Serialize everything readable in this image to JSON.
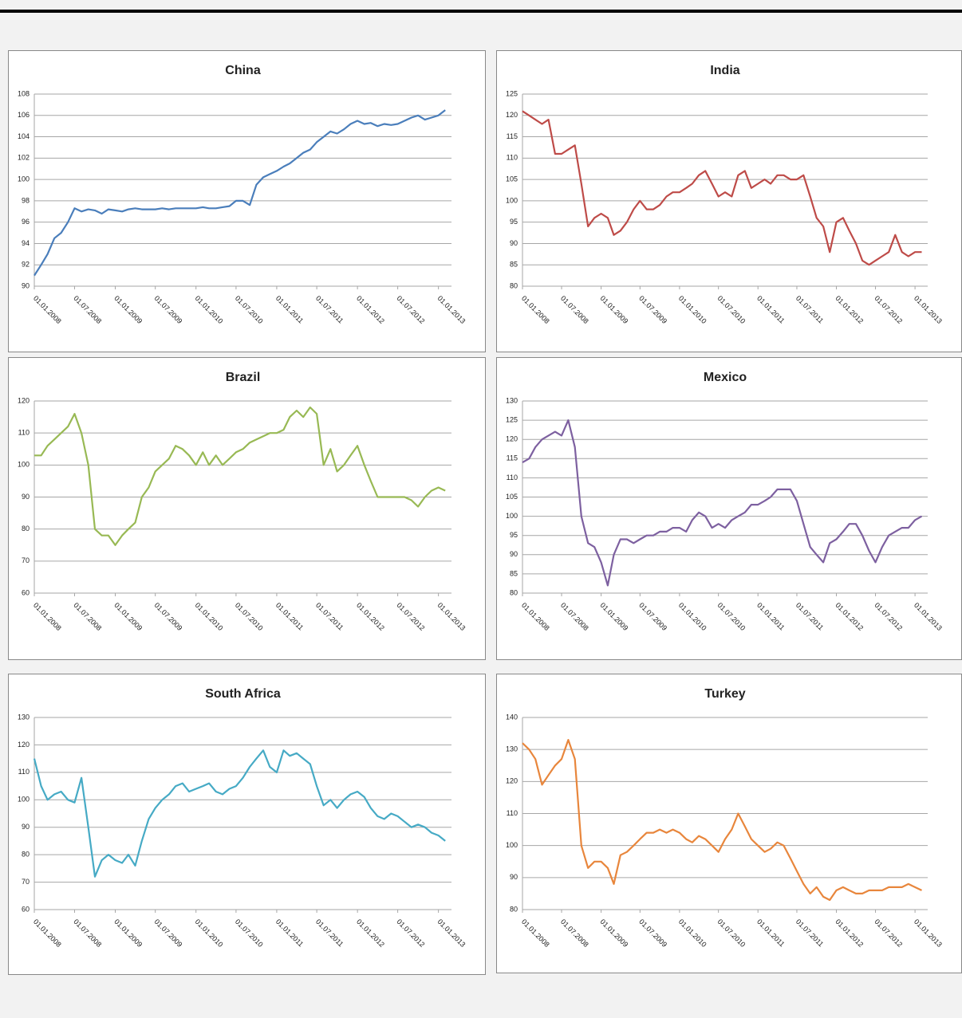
{
  "chart_data": [
    {
      "type": "line",
      "title": "China",
      "color": "#4a7ebb",
      "grid": true,
      "x": [
        "01.01.2008",
        "01.02.2008",
        "01.03.2008",
        "01.04.2008",
        "01.05.2008",
        "01.06.2008",
        "01.07.2008",
        "01.08.2008",
        "01.09.2008",
        "01.10.2008",
        "01.11.2008",
        "01.12.2008",
        "01.01.2009",
        "01.02.2009",
        "01.03.2009",
        "01.04.2009",
        "01.05.2009",
        "01.06.2009",
        "01.07.2009",
        "01.08.2009",
        "01.09.2009",
        "01.10.2009",
        "01.11.2009",
        "01.12.2009",
        "01.01.2010",
        "01.02.2010",
        "01.03.2010",
        "01.04.2010",
        "01.05.2010",
        "01.06.2010",
        "01.07.2010",
        "01.08.2010",
        "01.09.2010",
        "01.10.2010",
        "01.11.2010",
        "01.12.2010",
        "01.01.2011",
        "01.02.2011",
        "01.03.2011",
        "01.04.2011",
        "01.05.2011",
        "01.06.2011",
        "01.07.2011",
        "01.08.2011",
        "01.09.2011",
        "01.10.2011",
        "01.11.2011",
        "01.12.2011",
        "01.01.2012",
        "01.02.2012",
        "01.03.2012",
        "01.04.2012",
        "01.05.2012",
        "01.06.2012",
        "01.07.2012",
        "01.08.2012",
        "01.09.2012",
        "01.10.2012",
        "01.11.2012",
        "01.12.2012",
        "01.01.2013",
        "01.02.2013"
      ],
      "values": [
        91,
        92,
        93,
        94.5,
        95,
        96,
        97.3,
        97,
        97.2,
        97.1,
        96.8,
        97.2,
        97.1,
        97.0,
        97.2,
        97.3,
        97.2,
        97.2,
        97.2,
        97.3,
        97.2,
        97.3,
        97.3,
        97.3,
        97.3,
        97.4,
        97.3,
        97.3,
        97.4,
        97.5,
        98.0,
        98.0,
        97.6,
        99.5,
        100.2,
        100.5,
        100.8,
        101.2,
        101.5,
        102.0,
        102.5,
        102.8,
        103.5,
        104.0,
        104.5,
        104.3,
        104.7,
        105.2,
        105.5,
        105.2,
        105.3,
        105.0,
        105.2,
        105.1,
        105.2,
        105.5,
        105.8,
        106.0,
        105.6,
        105.8,
        106.0,
        106.5
      ],
      "xlim": [
        "01.01.2008",
        "01.03.2013"
      ],
      "xticks": [
        "01.01.2008",
        "01.07.2008",
        "01.01.2009",
        "01.07.2009",
        "01.01.2010",
        "01.07.2010",
        "01.01.2011",
        "01.07.2011",
        "01.01.2012",
        "01.07.2012",
        "01.01.2013"
      ],
      "ylim": [
        90,
        108
      ],
      "yticks": [
        90,
        92,
        94,
        96,
        98,
        100,
        102,
        104,
        106,
        108
      ]
    },
    {
      "type": "line",
      "title": "India",
      "color": "#be4b48",
      "grid": true,
      "x": [
        "01.01.2008",
        "01.02.2008",
        "01.03.2008",
        "01.04.2008",
        "01.05.2008",
        "01.06.2008",
        "01.07.2008",
        "01.08.2008",
        "01.09.2008",
        "01.10.2008",
        "01.11.2008",
        "01.12.2008",
        "01.01.2009",
        "01.02.2009",
        "01.03.2009",
        "01.04.2009",
        "01.05.2009",
        "01.06.2009",
        "01.07.2009",
        "01.08.2009",
        "01.09.2009",
        "01.10.2009",
        "01.11.2009",
        "01.12.2009",
        "01.01.2010",
        "01.02.2010",
        "01.03.2010",
        "01.04.2010",
        "01.05.2010",
        "01.06.2010",
        "01.07.2010",
        "01.08.2010",
        "01.09.2010",
        "01.10.2010",
        "01.11.2010",
        "01.12.2010",
        "01.01.2011",
        "01.02.2011",
        "01.03.2011",
        "01.04.2011",
        "01.05.2011",
        "01.06.2011",
        "01.07.2011",
        "01.08.2011",
        "01.09.2011",
        "01.10.2011",
        "01.11.2011",
        "01.12.2011",
        "01.01.2012",
        "01.02.2012",
        "01.03.2012",
        "01.04.2012",
        "01.05.2012",
        "01.06.2012",
        "01.07.2012",
        "01.08.2012",
        "01.09.2012",
        "01.10.2012",
        "01.11.2012",
        "01.12.2012",
        "01.01.2013",
        "01.02.2013"
      ],
      "values": [
        121,
        120,
        119,
        118,
        119,
        111,
        111,
        112,
        113,
        104,
        94,
        96,
        97,
        96,
        92,
        93,
        95,
        98,
        100,
        98,
        98,
        99,
        101,
        102,
        102,
        103,
        104,
        106,
        107,
        104,
        101,
        102,
        101,
        106,
        107,
        103,
        104,
        105,
        104,
        106,
        106,
        105,
        105,
        106,
        101,
        96,
        94,
        88,
        95,
        96,
        93,
        90,
        86,
        85,
        86,
        87,
        88,
        92,
        88,
        87,
        88,
        88
      ],
      "xlim": [
        "01.01.2008",
        "01.03.2013"
      ],
      "xticks": [
        "01.01.2008",
        "01.07.2008",
        "01.01.2009",
        "01.07.2009",
        "01.01.2010",
        "01.07.2010",
        "01.01.2011",
        "01.07.2011",
        "01.01.2012",
        "01.07.2012",
        "01.01.2013"
      ],
      "ylim": [
        80,
        125
      ],
      "yticks": [
        80,
        85,
        90,
        95,
        100,
        105,
        110,
        115,
        120,
        125
      ]
    },
    {
      "type": "line",
      "title": "Brazil",
      "color": "#98b954",
      "grid": true,
      "x": [
        "01.01.2008",
        "01.02.2008",
        "01.03.2008",
        "01.04.2008",
        "01.05.2008",
        "01.06.2008",
        "01.07.2008",
        "01.08.2008",
        "01.09.2008",
        "01.10.2008",
        "01.11.2008",
        "01.12.2008",
        "01.01.2009",
        "01.02.2009",
        "01.03.2009",
        "01.04.2009",
        "01.05.2009",
        "01.06.2009",
        "01.07.2009",
        "01.08.2009",
        "01.09.2009",
        "01.10.2009",
        "01.11.2009",
        "01.12.2009",
        "01.01.2010",
        "01.02.2010",
        "01.03.2010",
        "01.04.2010",
        "01.05.2010",
        "01.06.2010",
        "01.07.2010",
        "01.08.2010",
        "01.09.2010",
        "01.10.2010",
        "01.11.2010",
        "01.12.2010",
        "01.01.2011",
        "01.02.2011",
        "01.03.2011",
        "01.04.2011",
        "01.05.2011",
        "01.06.2011",
        "01.07.2011",
        "01.08.2011",
        "01.09.2011",
        "01.10.2011",
        "01.11.2011",
        "01.12.2011",
        "01.01.2012",
        "01.02.2012",
        "01.03.2012",
        "01.04.2012",
        "01.05.2012",
        "01.06.2012",
        "01.07.2012",
        "01.08.2012",
        "01.09.2012",
        "01.10.2012",
        "01.11.2012",
        "01.12.2012",
        "01.01.2013",
        "01.02.2013"
      ],
      "values": [
        103,
        103,
        106,
        108,
        110,
        112,
        116,
        110,
        100,
        80,
        78,
        78,
        75,
        78,
        80,
        82,
        90,
        93,
        98,
        100,
        102,
        106,
        105,
        103,
        100,
        104,
        100,
        103,
        100,
        102,
        104,
        105,
        107,
        108,
        109,
        110,
        110,
        111,
        115,
        117,
        115,
        118,
        116,
        100,
        105,
        98,
        100,
        103,
        106,
        100,
        95,
        90,
        90,
        90,
        90,
        90,
        89,
        87,
        90,
        92,
        93,
        92
      ],
      "xlim": [
        "01.01.2008",
        "01.03.2013"
      ],
      "xticks": [
        "01.01.2008",
        "01.07.2008",
        "01.01.2009",
        "01.07.2009",
        "01.01.2010",
        "01.07.2010",
        "01.01.2011",
        "01.07.2011",
        "01.01.2012",
        "01.07.2012",
        "01.01.2013"
      ],
      "ylim": [
        60,
        120
      ],
      "yticks": [
        60,
        70,
        80,
        90,
        100,
        110,
        120
      ]
    },
    {
      "type": "line",
      "title": "Mexico",
      "color": "#7d60a0",
      "grid": true,
      "x": [
        "01.01.2008",
        "01.02.2008",
        "01.03.2008",
        "01.04.2008",
        "01.05.2008",
        "01.06.2008",
        "01.07.2008",
        "01.08.2008",
        "01.09.2008",
        "01.10.2008",
        "01.11.2008",
        "01.12.2008",
        "01.01.2009",
        "01.02.2009",
        "01.03.2009",
        "01.04.2009",
        "01.05.2009",
        "01.06.2009",
        "01.07.2009",
        "01.08.2009",
        "01.09.2009",
        "01.10.2009",
        "01.11.2009",
        "01.12.2009",
        "01.01.2010",
        "01.02.2010",
        "01.03.2010",
        "01.04.2010",
        "01.05.2010",
        "01.06.2010",
        "01.07.2010",
        "01.08.2010",
        "01.09.2010",
        "01.10.2010",
        "01.11.2010",
        "01.12.2010",
        "01.01.2011",
        "01.02.2011",
        "01.03.2011",
        "01.04.2011",
        "01.05.2011",
        "01.06.2011",
        "01.07.2011",
        "01.08.2011",
        "01.09.2011",
        "01.10.2011",
        "01.11.2011",
        "01.12.2011",
        "01.01.2012",
        "01.02.2012",
        "01.03.2012",
        "01.04.2012",
        "01.05.2012",
        "01.06.2012",
        "01.07.2012",
        "01.08.2012",
        "01.09.2012",
        "01.10.2012",
        "01.11.2012",
        "01.12.2012",
        "01.01.2013",
        "01.02.2013"
      ],
      "values": [
        114,
        115,
        118,
        120,
        121,
        122,
        121,
        125,
        118,
        100,
        93,
        92,
        88,
        82,
        90,
        94,
        94,
        93,
        94,
        95,
        95,
        96,
        96,
        97,
        97,
        96,
        99,
        101,
        100,
        97,
        98,
        97,
        99,
        100,
        101,
        103,
        103,
        104,
        105,
        107,
        107,
        107,
        104,
        98,
        92,
        90,
        88,
        93,
        94,
        96,
        98,
        98,
        95,
        91,
        88,
        92,
        95,
        96,
        97,
        97,
        99,
        100
      ],
      "xlim": [
        "01.01.2008",
        "01.03.2013"
      ],
      "xticks": [
        "01.01.2008",
        "01.07.2008",
        "01.01.2009",
        "01.07.2009",
        "01.01.2010",
        "01.07.2010",
        "01.01.2011",
        "01.07.2011",
        "01.01.2012",
        "01.07.2012",
        "01.01.2013"
      ],
      "ylim": [
        80,
        130
      ],
      "yticks": [
        80,
        85,
        90,
        95,
        100,
        105,
        110,
        115,
        120,
        125,
        130
      ]
    },
    {
      "type": "line",
      "title": "South Africa",
      "color": "#46aac5",
      "grid": true,
      "x": [
        "01.01.2008",
        "01.02.2008",
        "01.03.2008",
        "01.04.2008",
        "01.05.2008",
        "01.06.2008",
        "01.07.2008",
        "01.08.2008",
        "01.09.2008",
        "01.10.2008",
        "01.11.2008",
        "01.12.2008",
        "01.01.2009",
        "01.02.2009",
        "01.03.2009",
        "01.04.2009",
        "01.05.2009",
        "01.06.2009",
        "01.07.2009",
        "01.08.2009",
        "01.09.2009",
        "01.10.2009",
        "01.11.2009",
        "01.12.2009",
        "01.01.2010",
        "01.02.2010",
        "01.03.2010",
        "01.04.2010",
        "01.05.2010",
        "01.06.2010",
        "01.07.2010",
        "01.08.2010",
        "01.09.2010",
        "01.10.2010",
        "01.11.2010",
        "01.12.2010",
        "01.01.2011",
        "01.02.2011",
        "01.03.2011",
        "01.04.2011",
        "01.05.2011",
        "01.06.2011",
        "01.07.2011",
        "01.08.2011",
        "01.09.2011",
        "01.10.2011",
        "01.11.2011",
        "01.12.2011",
        "01.01.2012",
        "01.02.2012",
        "01.03.2012",
        "01.04.2012",
        "01.05.2012",
        "01.06.2012",
        "01.07.2012",
        "01.08.2012",
        "01.09.2012",
        "01.10.2012",
        "01.11.2012",
        "01.12.2012",
        "01.01.2013",
        "01.02.2013"
      ],
      "values": [
        115,
        105,
        100,
        102,
        103,
        100,
        99,
        108,
        90,
        72,
        78,
        80,
        78,
        77,
        80,
        76,
        85,
        93,
        97,
        100,
        102,
        105,
        106,
        103,
        104,
        105,
        106,
        103,
        102,
        104,
        105,
        108,
        112,
        115,
        118,
        112,
        110,
        118,
        116,
        117,
        115,
        113,
        105,
        98,
        100,
        97,
        100,
        102,
        103,
        101,
        97,
        94,
        93,
        95,
        94,
        92,
        90,
        91,
        90,
        88,
        87,
        85
      ],
      "xlim": [
        "01.01.2008",
        "01.03.2013"
      ],
      "xticks": [
        "01.01.2008",
        "01.07.2008",
        "01.01.2009",
        "01.07.2009",
        "01.01.2010",
        "01.07.2010",
        "01.01.2011",
        "01.07.2011",
        "01.01.2012",
        "01.07.2012",
        "01.01.2013"
      ],
      "ylim": [
        60,
        130
      ],
      "yticks": [
        60,
        70,
        80,
        90,
        100,
        110,
        120,
        130
      ]
    },
    {
      "type": "line",
      "title": "Turkey",
      "color": "#e8863c",
      "grid": true,
      "x": [
        "01.01.2008",
        "01.02.2008",
        "01.03.2008",
        "01.04.2008",
        "01.05.2008",
        "01.06.2008",
        "01.07.2008",
        "01.08.2008",
        "01.09.2008",
        "01.10.2008",
        "01.11.2008",
        "01.12.2008",
        "01.01.2009",
        "01.02.2009",
        "01.03.2009",
        "01.04.2009",
        "01.05.2009",
        "01.06.2009",
        "01.07.2009",
        "01.08.2009",
        "01.09.2009",
        "01.10.2009",
        "01.11.2009",
        "01.12.2009",
        "01.01.2010",
        "01.02.2010",
        "01.03.2010",
        "01.04.2010",
        "01.05.2010",
        "01.06.2010",
        "01.07.2010",
        "01.08.2010",
        "01.09.2010",
        "01.10.2010",
        "01.11.2010",
        "01.12.2010",
        "01.01.2011",
        "01.02.2011",
        "01.03.2011",
        "01.04.2011",
        "01.05.2011",
        "01.06.2011",
        "01.07.2011",
        "01.08.2011",
        "01.09.2011",
        "01.10.2011",
        "01.11.2011",
        "01.12.2011",
        "01.01.2012",
        "01.02.2012",
        "01.03.2012",
        "01.04.2012",
        "01.05.2012",
        "01.06.2012",
        "01.07.2012",
        "01.08.2012",
        "01.09.2012",
        "01.10.2012",
        "01.11.2012",
        "01.12.2012",
        "01.01.2013",
        "01.02.2013"
      ],
      "values": [
        132,
        130,
        127,
        119,
        122,
        125,
        127,
        133,
        127,
        100,
        93,
        95,
        95,
        93,
        88,
        97,
        98,
        100,
        102,
        104,
        104,
        105,
        104,
        105,
        104,
        102,
        101,
        103,
        102,
        100,
        98,
        102,
        105,
        110,
        106,
        102,
        100,
        98,
        99,
        101,
        100,
        96,
        92,
        88,
        85,
        87,
        84,
        83,
        86,
        87,
        86,
        85,
        85,
        86,
        86,
        86,
        87,
        87,
        87,
        88,
        87,
        86
      ],
      "xlim": [
        "01.01.2008",
        "01.03.2013"
      ],
      "xticks": [
        "01.01.2008",
        "01.07.2008",
        "01.01.2009",
        "01.07.2009",
        "01.01.2010",
        "01.07.2010",
        "01.01.2011",
        "01.07.2011",
        "01.01.2012",
        "01.07.2012",
        "01.01.2013"
      ],
      "ylim": [
        80,
        140
      ],
      "yticks": [
        80,
        90,
        100,
        110,
        120,
        130,
        140
      ]
    }
  ]
}
